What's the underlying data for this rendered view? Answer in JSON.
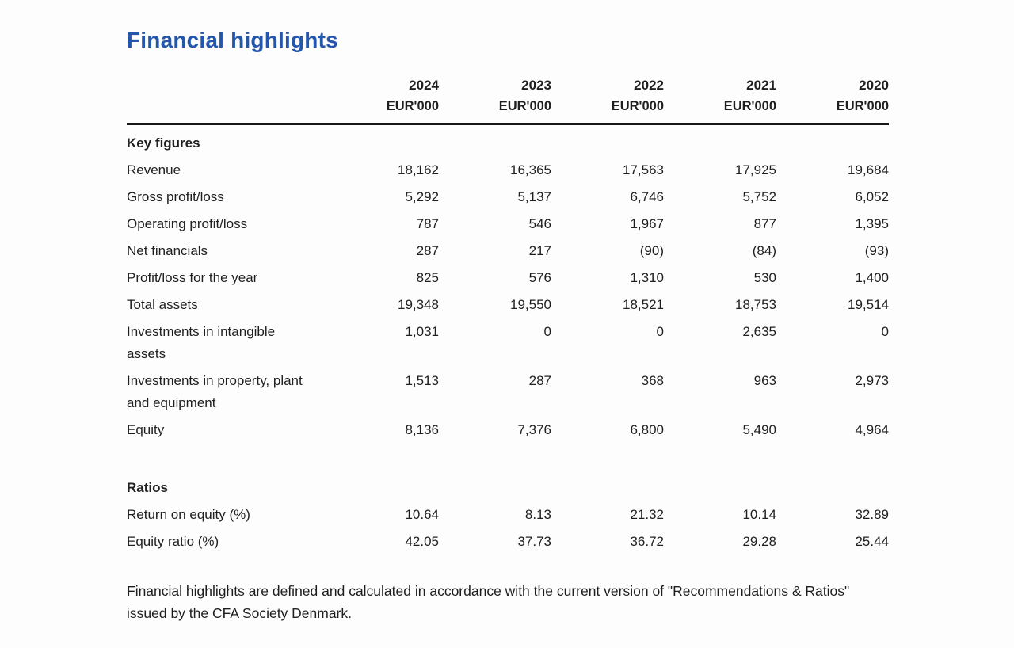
{
  "page": {
    "title": "Financial highlights",
    "title_color": "#2456ab",
    "footnote": "Financial highlights are defined and calculated in accordance with the current version of \"Recommendations & Ratios\" issued by the CFA Society Denmark."
  },
  "table": {
    "unit_label": "EUR'000",
    "years": [
      "2024",
      "2023",
      "2022",
      "2021",
      "2020"
    ],
    "sections": [
      {
        "heading": "Key figures",
        "rows": [
          {
            "label": "Revenue",
            "values": [
              "18,162",
              "16,365",
              "17,563",
              "17,925",
              "19,684"
            ]
          },
          {
            "label": "Gross profit/loss",
            "values": [
              "5,292",
              "5,137",
              "6,746",
              "5,752",
              "6,052"
            ]
          },
          {
            "label": "Operating profit/loss",
            "values": [
              "787",
              "546",
              "1,967",
              "877",
              "1,395"
            ]
          },
          {
            "label": "Net financials",
            "values": [
              "287",
              "217",
              "(90)",
              "(84)",
              "(93)"
            ]
          },
          {
            "label": "Profit/loss for the year",
            "values": [
              "825",
              "576",
              "1,310",
              "530",
              "1,400"
            ]
          },
          {
            "label": "Total assets",
            "values": [
              "19,348",
              "19,550",
              "18,521",
              "18,753",
              "19,514"
            ]
          },
          {
            "label": "Investments in intangible assets",
            "values": [
              "1,031",
              "0",
              "0",
              "2,635",
              "0"
            ]
          },
          {
            "label": "Investments in property, plant and equipment",
            "values": [
              "1,513",
              "287",
              "368",
              "963",
              "2,973"
            ]
          },
          {
            "label": "Equity",
            "values": [
              "8,136",
              "7,376",
              "6,800",
              "5,490",
              "4,964"
            ]
          }
        ]
      },
      {
        "heading": "Ratios",
        "rows": [
          {
            "label": "Return on equity (%)",
            "values": [
              "10.64",
              "8.13",
              "21.32",
              "10.14",
              "32.89"
            ]
          },
          {
            "label": "Equity ratio (%)",
            "values": [
              "42.05",
              "37.73",
              "36.72",
              "29.28",
              "25.44"
            ]
          }
        ]
      }
    ]
  }
}
